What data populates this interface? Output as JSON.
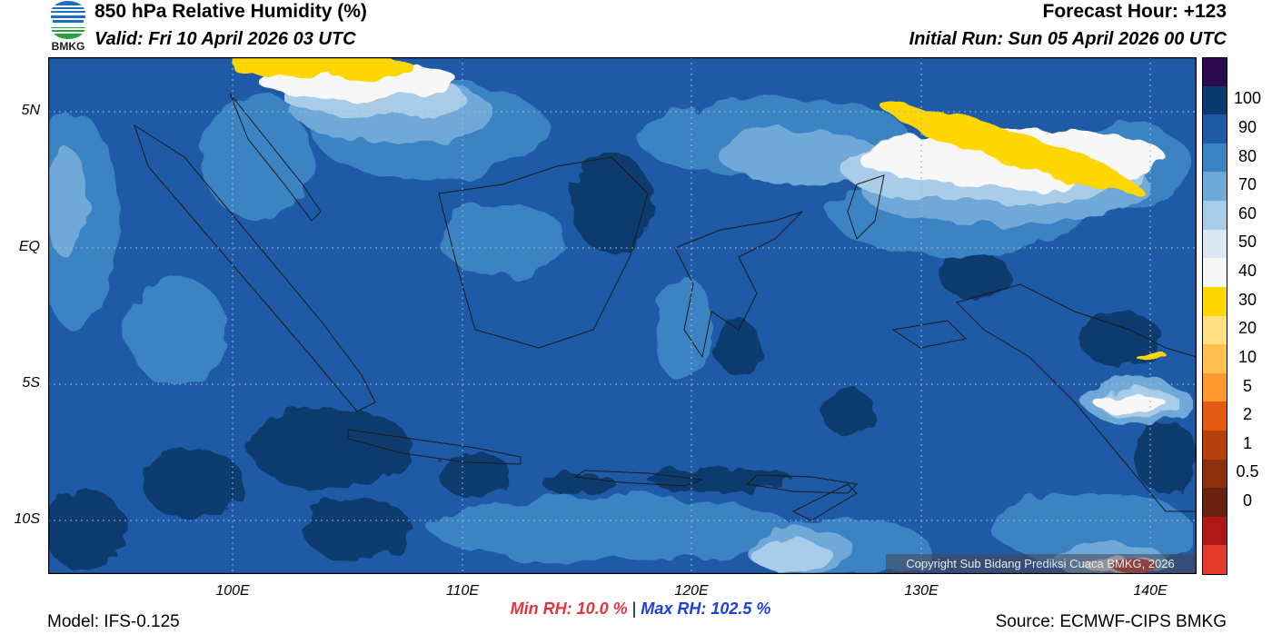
{
  "header": {
    "title": "850 hPa Relative Humidity (%)",
    "valid": "Valid: Fri 10 April 2026 03 UTC",
    "forecast_hour": "Forecast Hour: +123",
    "initial_run": "Initial Run: Sun 05 April 2026 00 UTC",
    "logo_text": "BMKG"
  },
  "axes": {
    "lat_labels": [
      "5N",
      "EQ",
      "5S",
      "10S"
    ],
    "lon_labels": [
      "100E",
      "110E",
      "120E",
      "130E",
      "140E"
    ]
  },
  "colorbar": {
    "labels": [
      "100",
      "90",
      "80",
      "70",
      "60",
      "50",
      "40",
      "30",
      "20",
      "10",
      "5",
      "2",
      "1",
      "0.5",
      "0"
    ],
    "colors": [
      "#2c0a4e",
      "#0b3a6e",
      "#1f5aa6",
      "#3a83c2",
      "#6fa9d8",
      "#a9cde8",
      "#dce9f4",
      "#f7f7f7",
      "#ffd700",
      "#ffe082",
      "#ffc04d",
      "#ff9a33",
      "#e35b12",
      "#b8400c",
      "#8b2f0c",
      "#6a2210",
      "#b01818",
      "#e23b2e"
    ]
  },
  "stats": {
    "min_rh": "Min RH:  10.0 %",
    "separator": "|",
    "max_rh": "Max RH: 102.5 %"
  },
  "footer": {
    "model": "Model: IFS-0.125",
    "source": "Source: ECMWF-CIPS BMKG",
    "copyright": "Copyright Sub Bidang Prediksi Cuaca BMKG, 2026"
  }
}
